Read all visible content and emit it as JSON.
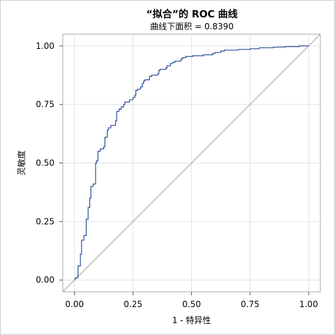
{
  "chart_data": {
    "type": "line",
    "title": "“拟合”的 ROC 曲线",
    "subtitle": "曲线下面积 = 0.8390",
    "xlabel": "1 - 特异性",
    "ylabel": "灵敏度",
    "xlim": [
      -0.05,
      1.05
    ],
    "ylim": [
      -0.05,
      1.05
    ],
    "x_ticks": [
      0.0,
      0.25,
      0.5,
      0.75,
      1.0
    ],
    "y_ticks": [
      0.0,
      0.25,
      0.5,
      0.75,
      1.0
    ],
    "x_tick_labels": [
      "0.00",
      "0.25",
      "0.50",
      "0.75",
      "1.00"
    ],
    "y_tick_labels": [
      "0.00",
      "0.25",
      "0.50",
      "0.75",
      "1.00"
    ],
    "grid": true,
    "series": [
      {
        "color": "#2a4f9c",
        "style": "step",
        "points": [
          [
            0.0,
            0.0
          ],
          [
            0.005,
            0.01
          ],
          [
            0.015,
            0.01
          ],
          [
            0.015,
            0.06
          ],
          [
            0.025,
            0.06
          ],
          [
            0.025,
            0.11
          ],
          [
            0.03,
            0.11
          ],
          [
            0.03,
            0.17
          ],
          [
            0.04,
            0.17
          ],
          [
            0.04,
            0.19
          ],
          [
            0.05,
            0.19
          ],
          [
            0.05,
            0.26
          ],
          [
            0.058,
            0.26
          ],
          [
            0.058,
            0.31
          ],
          [
            0.065,
            0.31
          ],
          [
            0.065,
            0.35
          ],
          [
            0.07,
            0.35
          ],
          [
            0.07,
            0.4
          ],
          [
            0.08,
            0.4
          ],
          [
            0.08,
            0.41
          ],
          [
            0.09,
            0.41
          ],
          [
            0.09,
            0.5
          ],
          [
            0.095,
            0.5
          ],
          [
            0.095,
            0.51
          ],
          [
            0.1,
            0.51
          ],
          [
            0.1,
            0.55
          ],
          [
            0.11,
            0.55
          ],
          [
            0.11,
            0.56
          ],
          [
            0.125,
            0.56
          ],
          [
            0.125,
            0.57
          ],
          [
            0.13,
            0.57
          ],
          [
            0.13,
            0.61
          ],
          [
            0.14,
            0.61
          ],
          [
            0.14,
            0.64
          ],
          [
            0.145,
            0.64
          ],
          [
            0.145,
            0.65
          ],
          [
            0.155,
            0.65
          ],
          [
            0.155,
            0.66
          ],
          [
            0.175,
            0.66
          ],
          [
            0.175,
            0.68
          ],
          [
            0.18,
            0.68
          ],
          [
            0.18,
            0.72
          ],
          [
            0.19,
            0.72
          ],
          [
            0.19,
            0.73
          ],
          [
            0.2,
            0.73
          ],
          [
            0.2,
            0.74
          ],
          [
            0.21,
            0.74
          ],
          [
            0.21,
            0.75
          ],
          [
            0.215,
            0.75
          ],
          [
            0.215,
            0.76
          ],
          [
            0.235,
            0.76
          ],
          [
            0.235,
            0.77
          ],
          [
            0.25,
            0.77
          ],
          [
            0.25,
            0.78
          ],
          [
            0.258,
            0.78
          ],
          [
            0.258,
            0.79
          ],
          [
            0.262,
            0.79
          ],
          [
            0.262,
            0.81
          ],
          [
            0.27,
            0.81
          ],
          [
            0.27,
            0.815
          ],
          [
            0.282,
            0.815
          ],
          [
            0.282,
            0.825
          ],
          [
            0.29,
            0.825
          ],
          [
            0.29,
            0.84
          ],
          [
            0.295,
            0.84
          ],
          [
            0.295,
            0.85
          ],
          [
            0.3,
            0.85
          ],
          [
            0.3,
            0.855
          ],
          [
            0.32,
            0.855
          ],
          [
            0.32,
            0.87
          ],
          [
            0.33,
            0.87
          ],
          [
            0.33,
            0.875
          ],
          [
            0.355,
            0.875
          ],
          [
            0.355,
            0.88
          ],
          [
            0.36,
            0.88
          ],
          [
            0.36,
            0.895
          ],
          [
            0.365,
            0.895
          ],
          [
            0.365,
            0.9
          ],
          [
            0.39,
            0.9
          ],
          [
            0.39,
            0.905
          ],
          [
            0.395,
            0.905
          ],
          [
            0.395,
            0.915
          ],
          [
            0.41,
            0.915
          ],
          [
            0.41,
            0.925
          ],
          [
            0.42,
            0.925
          ],
          [
            0.42,
            0.93
          ],
          [
            0.43,
            0.93
          ],
          [
            0.43,
            0.935
          ],
          [
            0.455,
            0.935
          ],
          [
            0.455,
            0.945
          ],
          [
            0.462,
            0.945
          ],
          [
            0.462,
            0.95
          ],
          [
            0.475,
            0.95
          ],
          [
            0.475,
            0.955
          ],
          [
            0.505,
            0.955
          ],
          [
            0.505,
            0.958
          ],
          [
            0.55,
            0.958
          ],
          [
            0.55,
            0.962
          ],
          [
            0.59,
            0.962
          ],
          [
            0.59,
            0.968
          ],
          [
            0.6,
            0.968
          ],
          [
            0.6,
            0.972
          ],
          [
            0.625,
            0.972
          ],
          [
            0.625,
            0.978
          ],
          [
            0.64,
            0.978
          ],
          [
            0.64,
            0.982
          ],
          [
            0.7,
            0.982
          ],
          [
            0.7,
            0.985
          ],
          [
            0.75,
            0.985
          ],
          [
            0.75,
            0.988
          ],
          [
            0.79,
            0.988
          ],
          [
            0.79,
            0.992
          ],
          [
            0.85,
            0.992
          ],
          [
            0.85,
            0.995
          ],
          [
            0.9,
            0.995
          ],
          [
            0.9,
            0.997
          ],
          [
            0.96,
            0.997
          ],
          [
            0.96,
            1.0
          ],
          [
            1.0,
            1.0
          ]
        ]
      },
      {
        "color": "#a0a0a0",
        "style": "line",
        "points": [
          [
            -0.05,
            -0.05
          ],
          [
            1.05,
            1.05
          ]
        ]
      }
    ]
  }
}
